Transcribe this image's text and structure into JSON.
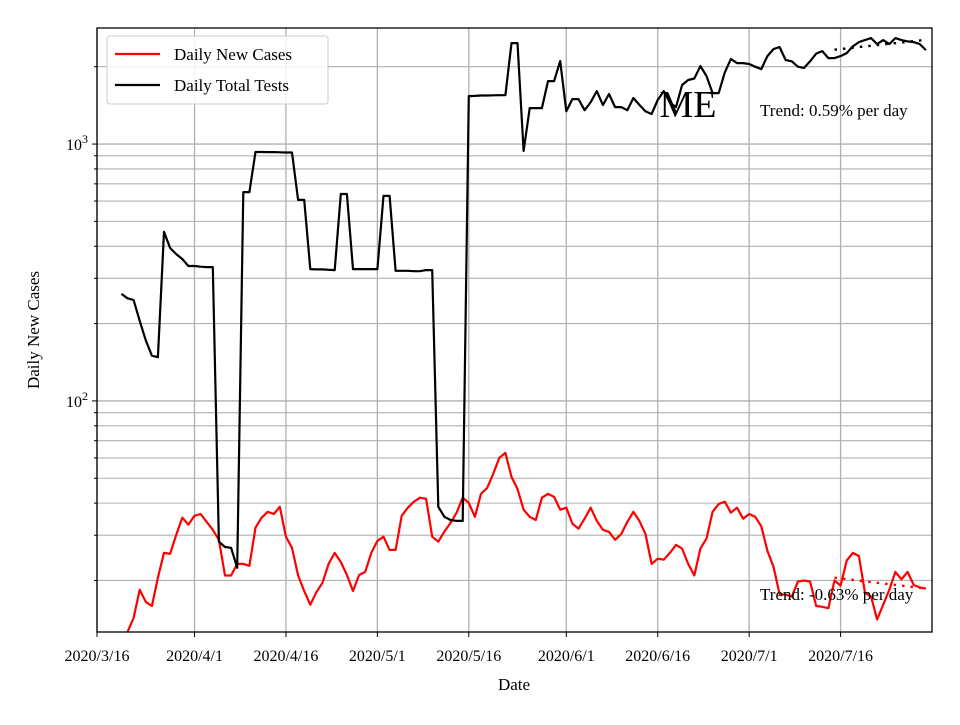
{
  "chart_data": {
    "type": "line",
    "title": "",
    "xlabel": "Date",
    "ylabel": "Daily New Cases",
    "yscale": "log",
    "ylim": [
      12.6,
      2830
    ],
    "xlim": [
      "2020/3/16",
      "2020/7/31"
    ],
    "grid": true,
    "legend_position": "top-left",
    "x_ticks": [
      "2020/3/16",
      "2020/4/1",
      "2020/4/16",
      "2020/5/1",
      "2020/5/16",
      "2020/6/1",
      "2020/6/16",
      "2020/7/1",
      "2020/7/16"
    ],
    "y_ticks": [
      {
        "value": 100,
        "base": "10",
        "exp": "2"
      },
      {
        "value": 1000,
        "base": "10",
        "exp": "3"
      }
    ],
    "annotation": "ME",
    "dates": [
      "2020/3/20",
      "2020/3/21",
      "2020/3/22",
      "2020/3/23",
      "2020/3/24",
      "2020/3/25",
      "2020/3/26",
      "2020/3/27",
      "2020/3/28",
      "2020/3/29",
      "2020/3/30",
      "2020/3/31",
      "2020/4/1",
      "2020/4/2",
      "2020/4/3",
      "2020/4/4",
      "2020/4/5",
      "2020/4/6",
      "2020/4/7",
      "2020/4/8",
      "2020/4/9",
      "2020/4/10",
      "2020/4/11",
      "2020/4/12",
      "2020/4/13",
      "2020/4/14",
      "2020/4/15",
      "2020/4/16",
      "2020/4/17",
      "2020/4/18",
      "2020/4/19",
      "2020/4/20",
      "2020/4/21",
      "2020/4/22",
      "2020/4/23",
      "2020/4/24",
      "2020/4/25",
      "2020/4/26",
      "2020/4/27",
      "2020/4/28",
      "2020/4/29",
      "2020/4/30",
      "2020/5/1",
      "2020/5/2",
      "2020/5/3",
      "2020/5/4",
      "2020/5/5",
      "2020/5/6",
      "2020/5/7",
      "2020/5/8",
      "2020/5/9",
      "2020/5/10",
      "2020/5/11",
      "2020/5/12",
      "2020/5/13",
      "2020/5/14",
      "2020/5/15",
      "2020/5/16",
      "2020/5/17",
      "2020/5/18",
      "2020/5/19",
      "2020/5/20",
      "2020/5/21",
      "2020/5/22",
      "2020/5/23",
      "2020/5/24",
      "2020/5/25",
      "2020/5/26",
      "2020/5/27",
      "2020/5/28",
      "2020/5/29",
      "2020/5/30",
      "2020/5/31",
      "2020/6/1",
      "2020/6/2",
      "2020/6/3",
      "2020/6/4",
      "2020/6/5",
      "2020/6/6",
      "2020/6/7",
      "2020/6/8",
      "2020/6/9",
      "2020/6/10",
      "2020/6/11",
      "2020/6/12",
      "2020/6/13",
      "2020/6/14",
      "2020/6/15",
      "2020/6/16",
      "2020/6/17",
      "2020/6/18",
      "2020/6/19",
      "2020/6/20",
      "2020/6/21",
      "2020/6/22",
      "2020/6/23",
      "2020/6/24",
      "2020/6/25",
      "2020/6/26",
      "2020/6/27",
      "2020/6/28",
      "2020/6/29",
      "2020/6/30",
      "2020/7/1",
      "2020/7/2",
      "2020/7/3",
      "2020/7/4",
      "2020/7/5",
      "2020/7/6",
      "2020/7/7",
      "2020/7/8",
      "2020/7/9",
      "2020/7/10",
      "2020/7/11",
      "2020/7/12",
      "2020/7/13",
      "2020/7/14",
      "2020/7/15",
      "2020/7/16",
      "2020/7/17",
      "2020/7/18",
      "2020/7/19",
      "2020/7/20",
      "2020/7/21",
      "2020/7/22",
      "2020/7/23",
      "2020/7/24",
      "2020/7/25",
      "2020/7/26",
      "2020/7/27",
      "2020/7/28",
      "2020/7/29",
      "2020/7/30"
    ],
    "series": [
      {
        "name": "Daily New Cases",
        "color": "#ff0000",
        "values": [
          null,
          12.6,
          14.3,
          18.4,
          16.5,
          15.9,
          20.5,
          25.6,
          25.4,
          30.1,
          35.1,
          33.0,
          35.7,
          36.3,
          33.8,
          31.5,
          28.8,
          20.9,
          20.9,
          23.2,
          23.2,
          22.8,
          32.1,
          35.1,
          37.0,
          36.3,
          38.7,
          29.6,
          26.8,
          20.9,
          18.2,
          16.1,
          18.0,
          19.6,
          23.2,
          25.6,
          23.6,
          21.0,
          18.2,
          21.0,
          21.6,
          25.6,
          28.5,
          29.6,
          26.3,
          26.3,
          35.7,
          38.4,
          40.5,
          42.0,
          41.6,
          29.6,
          28.3,
          31.0,
          33.5,
          36.7,
          42.0,
          40.1,
          35.4,
          43.5,
          45.8,
          52.0,
          60.0,
          62.8,
          50.6,
          45.4,
          37.7,
          35.4,
          34.4,
          42.0,
          43.5,
          42.3,
          37.7,
          38.4,
          33.3,
          31.8,
          34.8,
          38.4,
          34.1,
          31.5,
          30.9,
          28.8,
          30.3,
          33.8,
          37.0,
          34.1,
          30.3,
          23.2,
          24.3,
          24.1,
          25.6,
          27.5,
          26.6,
          23.2,
          20.9,
          26.6,
          29.1,
          37.0,
          39.7,
          40.5,
          36.7,
          38.4,
          34.8,
          36.3,
          35.4,
          32.5,
          26.1,
          22.6,
          17.7,
          17.6,
          17.3,
          19.8,
          20.0,
          19.8,
          15.9,
          15.8,
          15.6,
          20.0,
          19.1,
          23.9,
          25.6,
          24.9,
          17.9,
          17.3,
          14.1,
          16.1,
          18.4,
          21.6,
          20.2,
          21.6,
          19.2,
          18.8,
          18.6
        ]
      },
      {
        "name": "Daily Total Tests",
        "color": "#000000",
        "values": [
          261,
          251,
          247,
          205,
          172,
          150,
          148,
          455,
          394,
          373,
          357,
          335,
          335,
          333,
          332,
          332,
          28.3,
          27.0,
          26.8,
          22.4,
          650,
          650,
          931,
          931,
          930,
          930,
          929,
          927,
          927,
          606,
          606,
          326,
          325,
          325,
          324,
          323,
          639,
          639,
          326,
          326,
          326,
          326,
          326,
          628,
          628,
          321,
          321,
          321,
          320,
          320,
          323,
          323,
          38.7,
          35.4,
          34.4,
          34.1,
          34.1,
          1537,
          1540,
          1545,
          1545,
          1548,
          1550,
          1551,
          2472,
          2472,
          940,
          1380,
          1380,
          1380,
          1758,
          1758,
          2104,
          1343,
          1496,
          1496,
          1355,
          1456,
          1608,
          1418,
          1566,
          1393,
          1393,
          1355,
          1511,
          1420,
          1340,
          1309,
          1484,
          1608,
          1450,
          1393,
          1698,
          1776,
          1800,
          2012,
          1841,
          1579,
          1579,
          1900,
          2143,
          2066,
          2066,
          2050,
          2000,
          1958,
          2200,
          2342,
          2385,
          2123,
          2100,
          2000,
          1977,
          2100,
          2250,
          2300,
          2161,
          2161,
          2200,
          2259,
          2400,
          2494,
          2540,
          2585,
          2449,
          2540,
          2449,
          2585,
          2540,
          2510,
          2494,
          2449,
          2322
        ]
      }
    ],
    "trends": [
      {
        "series": "Daily Total Tests",
        "label": "Trend: 0.59% per day",
        "color": "#000000",
        "x": [
          "2020/7/15",
          "2020/7/30"
        ],
        "y": [
          2330,
          2545
        ]
      },
      {
        "series": "Daily New Cases",
        "label": "Trend: -0.63% per day",
        "color": "#ff0000",
        "x": [
          "2020/7/15",
          "2020/7/30"
        ],
        "y": [
          20.5,
          18.6
        ]
      }
    ]
  }
}
